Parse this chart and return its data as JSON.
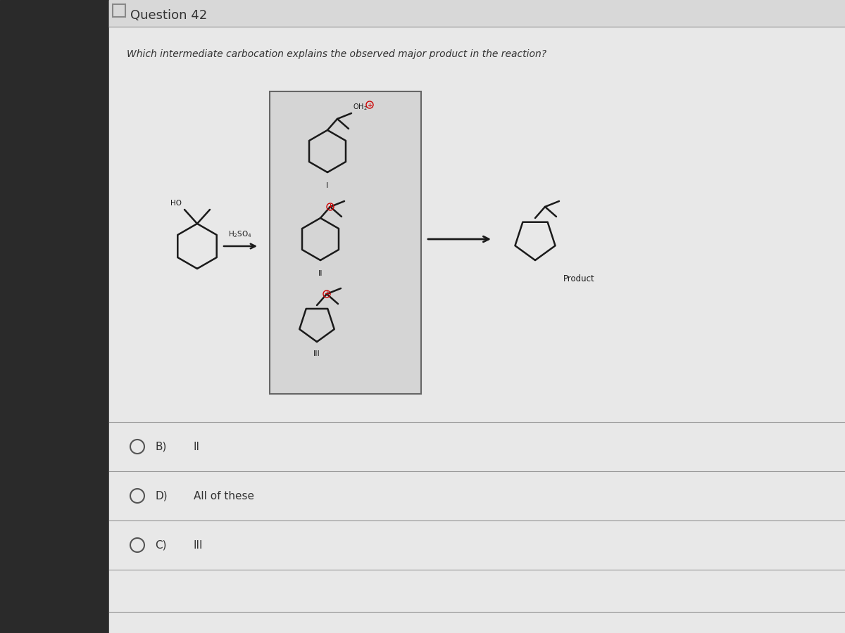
{
  "title": "Question 42",
  "question": "Which intermediate carbocation explains the observed major product in the reaction?",
  "left_dark_color": "#2a2a2a",
  "bg_color": "#c8c8c8",
  "content_color": "#e8e8e8",
  "box_color": "#d8d8d8",
  "text_color": "#111111",
  "dark_text": "#333333",
  "options": [
    {
      "label": "B)",
      "text": "II"
    },
    {
      "label": "D)",
      "text": "All of these"
    },
    {
      "label": "C)",
      "text": "III"
    }
  ],
  "reagent": "H₂SO₄",
  "reactant_label": "HO",
  "carbocation_labels": [
    "I",
    "II",
    "III"
  ],
  "product_label": "Product",
  "oh2_label": "OH₂",
  "title_fontsize": 13,
  "question_fontsize": 10,
  "option_fontsize": 11,
  "chem_color": "#1a1a1a",
  "plus_color": "#cc0000",
  "line_sep_color": "#999999"
}
